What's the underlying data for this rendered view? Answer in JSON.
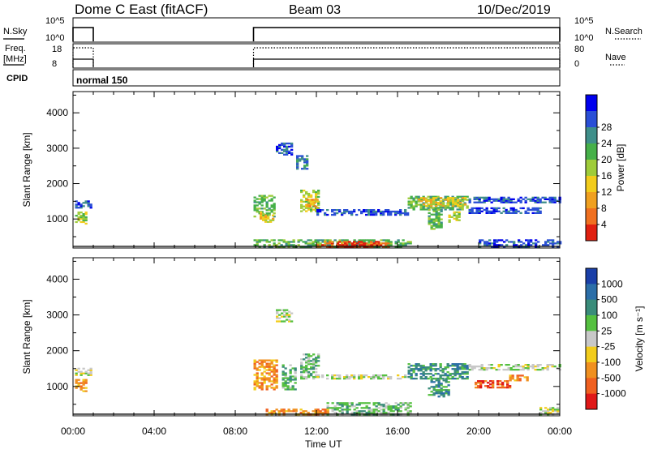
{
  "header": {
    "radar": "Dome C East (fitACF)",
    "beam": "Beam 03",
    "date": "10/Dec/2019"
  },
  "status_panels": {
    "nsky_label": "N.Sky",
    "nsearch_label": "N.Search",
    "freq_label_line1": "Freq.",
    "freq_label_line2": "[MHz]",
    "nave_label": "Nave",
    "cpid_label": "CPID",
    "cpid_value": "normal 150",
    "noise_ticks_left": [
      "10^5",
      "10^0"
    ],
    "noise_ticks_right": [
      "10^5",
      "10^0"
    ],
    "freq_ticks": [
      "18",
      "8"
    ],
    "nave_ticks": [
      "80",
      "0"
    ],
    "active_periods_hours": [
      [
        0.0,
        1.0
      ],
      [
        8.9,
        24.0
      ]
    ]
  },
  "chart_data": [
    {
      "type": "heatmap",
      "title": "",
      "xlabel": "Time UT",
      "ylabel": "Slant Range [km]",
      "x_ticks": [
        "00:00",
        "04:00",
        "08:00",
        "12:00",
        "16:00",
        "20:00",
        "00:00"
      ],
      "x_tick_hours": [
        0,
        4,
        8,
        12,
        16,
        20,
        24
      ],
      "xlim": [
        0,
        24
      ],
      "y_ticks": [
        1000,
        2000,
        3000,
        4000
      ],
      "ylim": [
        180,
        4600
      ],
      "colorbar": {
        "label": "Power [dB]",
        "ticks": [
          "4",
          "8",
          "12",
          "16",
          "20",
          "24",
          "28"
        ],
        "colors": [
          "#0000ee",
          "#2a4fd6",
          "#3f8f8a",
          "#46b049",
          "#9fcc3a",
          "#f2cc1c",
          "#f0a020",
          "#f07020",
          "#e02010"
        ]
      },
      "regions": [
        {
          "t": [
            0.1,
            0.9
          ],
          "r": [
            1300,
            1500
          ],
          "level": 1
        },
        {
          "t": [
            0.1,
            0.6
          ],
          "r": [
            850,
            1200
          ],
          "level": 4
        },
        {
          "t": [
            8.9,
            9.9
          ],
          "r": [
            1050,
            1650
          ],
          "level": 3
        },
        {
          "t": [
            9.2,
            9.8
          ],
          "r": [
            900,
            1200
          ],
          "level": 5
        },
        {
          "t": [
            10.0,
            10.8
          ],
          "r": [
            2800,
            3150
          ],
          "level": 1
        },
        {
          "t": [
            11.0,
            11.5
          ],
          "r": [
            2400,
            2800
          ],
          "level": 2
        },
        {
          "t": [
            11.2,
            12.1
          ],
          "r": [
            1200,
            1800
          ],
          "level": 4
        },
        {
          "t": [
            11.5,
            12.0
          ],
          "r": [
            1300,
            1550
          ],
          "level": 6
        },
        {
          "t": [
            12.0,
            16.5
          ],
          "r": [
            1100,
            1250
          ],
          "level": 1
        },
        {
          "t": [
            8.9,
            16.6
          ],
          "r": [
            200,
            420
          ],
          "level": 3
        },
        {
          "t": [
            12.0,
            15.5
          ],
          "r": [
            200,
            380
          ],
          "level": 7
        },
        {
          "t": [
            13.0,
            15.0
          ],
          "r": [
            200,
            320
          ],
          "level": 8
        },
        {
          "t": [
            16.5,
            19.5
          ],
          "r": [
            1250,
            1650
          ],
          "level": 3
        },
        {
          "t": [
            17.0,
            19.3
          ],
          "r": [
            1350,
            1600
          ],
          "level": 5
        },
        {
          "t": [
            17.5,
            18.2
          ],
          "r": [
            700,
            1250
          ],
          "level": 3
        },
        {
          "t": [
            18.5,
            19.0
          ],
          "r": [
            900,
            1200
          ],
          "level": 4
        },
        {
          "t": [
            19.5,
            24.0
          ],
          "r": [
            1450,
            1600
          ],
          "level": 1
        },
        {
          "t": [
            19.5,
            23.0
          ],
          "r": [
            1150,
            1300
          ],
          "level": 1
        },
        {
          "t": [
            20.0,
            24.0
          ],
          "r": [
            200,
            400
          ],
          "level": 1
        }
      ]
    },
    {
      "type": "heatmap",
      "title": "",
      "xlabel": "Time UT",
      "ylabel": "Slant Range [km]",
      "x_ticks": [
        "00:00",
        "04:00",
        "08:00",
        "12:00",
        "16:00",
        "20:00",
        "00:00"
      ],
      "x_tick_hours": [
        0,
        4,
        8,
        12,
        16,
        20,
        24
      ],
      "xlim": [
        0,
        24
      ],
      "y_ticks": [
        1000,
        2000,
        3000,
        4000
      ],
      "ylim": [
        180,
        4600
      ],
      "colorbar": {
        "label": "Velocity [m s⁻¹]",
        "ticks": [
          "1000",
          "500",
          "100",
          "25",
          "-25",
          "-100",
          "-500",
          "-1000"
        ],
        "colors": [
          "#1a3fa8",
          "#2b6ea8",
          "#3a8c7a",
          "#55c040",
          "#c8c8c8",
          "#f2cc1c",
          "#f09020",
          "#f06020",
          "#e01818"
        ]
      },
      "regions": [
        {
          "t": [
            0.1,
            0.9
          ],
          "r": [
            1300,
            1500
          ],
          "level": 4
        },
        {
          "t": [
            0.1,
            0.6
          ],
          "r": [
            850,
            1200
          ],
          "level": 6
        },
        {
          "t": [
            8.9,
            10.0
          ],
          "r": [
            900,
            1750
          ],
          "level": 6
        },
        {
          "t": [
            10.0,
            10.8
          ],
          "r": [
            2800,
            3150
          ],
          "level": 4
        },
        {
          "t": [
            10.3,
            11.0
          ],
          "r": [
            900,
            1600
          ],
          "level": 3
        },
        {
          "t": [
            11.2,
            12.1
          ],
          "r": [
            1200,
            1900
          ],
          "level": 3
        },
        {
          "t": [
            12.0,
            16.5
          ],
          "r": [
            1200,
            1300
          ],
          "level": 4
        },
        {
          "t": [
            12.5,
            16.6
          ],
          "r": [
            200,
            550
          ],
          "level": 3
        },
        {
          "t": [
            9.5,
            12.5
          ],
          "r": [
            200,
            380
          ],
          "level": 6
        },
        {
          "t": [
            16.5,
            19.5
          ],
          "r": [
            1200,
            1650
          ],
          "level": 2
        },
        {
          "t": [
            17.5,
            18.5
          ],
          "r": [
            700,
            1200
          ],
          "level": 2
        },
        {
          "t": [
            19.5,
            24.0
          ],
          "r": [
            1450,
            1600
          ],
          "level": 4
        },
        {
          "t": [
            19.8,
            21.5
          ],
          "r": [
            950,
            1150
          ],
          "level": 7
        },
        {
          "t": [
            21.5,
            22.5
          ],
          "r": [
            1150,
            1300
          ],
          "level": 6
        },
        {
          "t": [
            23.0,
            24.0
          ],
          "r": [
            200,
            400
          ],
          "level": 4
        }
      ]
    }
  ]
}
